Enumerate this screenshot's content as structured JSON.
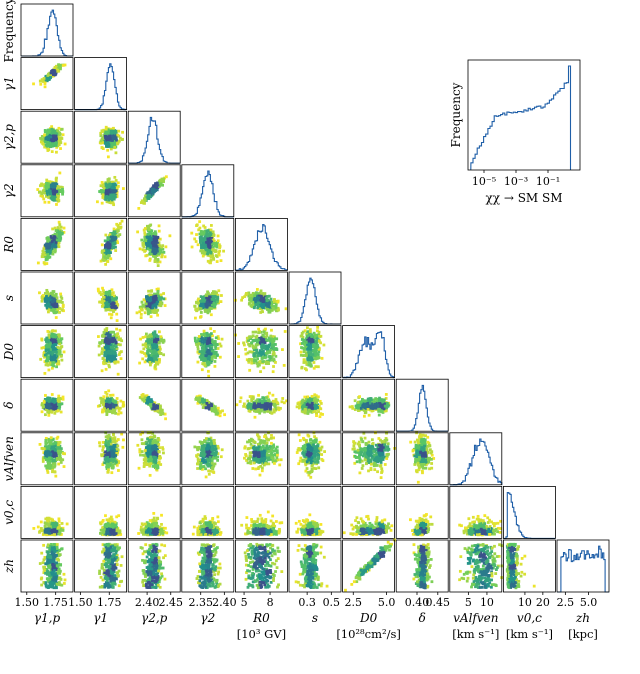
{
  "chart_data": {
    "type": "corner",
    "inset_histogram": {
      "type": "histogram",
      "xlabel": "χχ → SM SM",
      "ylabel": "Frequency",
      "xscale": "log",
      "x_ticks": [
        {
          "value": 1e-05,
          "label": "10⁻⁵"
        },
        {
          "value": 0.001,
          "label": "10⁻³"
        },
        {
          "value": 0.1,
          "label": "10⁻¹"
        }
      ],
      "xlim": [
        1e-06,
        10
      ],
      "color": "#1f5fa8"
    },
    "parameters": [
      {
        "name": "gamma_1p",
        "label": "γ1,p",
        "unit": "",
        "xlim": [
          1.45,
          1.9
        ],
        "ticks": [
          1.5,
          1.75
        ],
        "tick_labels": [
          "1.50",
          "1.75"
        ],
        "mean": 1.72,
        "sd": 0.04
      },
      {
        "name": "gamma_1",
        "label": "γ1",
        "unit": "",
        "xlim": [
          1.45,
          1.9
        ],
        "ticks": [
          1.5,
          1.75
        ],
        "tick_labels": [
          "1.50",
          "1.75"
        ],
        "mean": 1.76,
        "sd": 0.035
      },
      {
        "name": "gamma_2p",
        "label": "γ2,p",
        "unit": "",
        "xlim": [
          2.36,
          2.47
        ],
        "ticks": [
          2.4,
          2.45
        ],
        "tick_labels": [
          "2.40",
          "2.45"
        ],
        "mean": 2.412,
        "sd": 0.01
      },
      {
        "name": "gamma_2",
        "label": "γ2",
        "unit": "",
        "xlim": [
          2.31,
          2.42
        ],
        "ticks": [
          2.35,
          2.4
        ],
        "tick_labels": [
          "2.35",
          "2.40"
        ],
        "mean": 2.365,
        "sd": 0.011
      },
      {
        "name": "R_0",
        "label": "R0",
        "unit": "[10³ GV]",
        "xlim": [
          4,
          10
        ],
        "ticks": [
          5,
          8
        ],
        "tick_labels": [
          "5",
          "8"
        ],
        "mean": 7.1,
        "sd": 0.9
      },
      {
        "name": "s",
        "label": "s",
        "unit": "",
        "xlim": [
          0.15,
          0.58
        ],
        "ticks": [
          0.3,
          0.5
        ],
        "tick_labels": [
          "0.3",
          "0.5"
        ],
        "mean": 0.33,
        "sd": 0.04
      },
      {
        "name": "D_0",
        "label": "D0",
        "unit": "[10²⁸cm²/s]",
        "xlim": [
          1.7,
          5.6
        ],
        "ticks": [
          2.5,
          5.0
        ],
        "tick_labels": [
          "2.5",
          "5.0"
        ],
        "mean": 4.3,
        "sd": 0.55
      },
      {
        "name": "delta",
        "label": "δ",
        "unit": "",
        "xlim": [
          0.35,
          0.475
        ],
        "ticks": [
          0.4,
          0.45
        ],
        "tick_labels": [
          "0.40",
          "0.45"
        ],
        "mean": 0.413,
        "sd": 0.009
      },
      {
        "name": "v_Alfven",
        "label": "vAlfven",
        "unit": "[km s⁻¹]",
        "xlim": [
          0,
          14
        ],
        "ticks": [
          5,
          10
        ],
        "tick_labels": [
          "5",
          "10"
        ],
        "mean": 8.5,
        "sd": 2.1
      },
      {
        "name": "v_0c",
        "label": "v0,c",
        "unit": "[km s⁻¹]",
        "xlim": [
          -2,
          27
        ],
        "ticks": [
          10,
          20
        ],
        "tick_labels": [
          "10",
          "20"
        ],
        "mean": 1.5,
        "sd": 2.5
      },
      {
        "name": "z_h",
        "label": "zh",
        "unit": "[kpc]",
        "xlim": [
          1.6,
          7.2
        ],
        "ticks": [
          2.5,
          5.0
        ],
        "tick_labels": [
          "2.5",
          "5.0"
        ],
        "mean": 4.2,
        "sd": 1.5
      }
    ],
    "correlations": [
      {
        "pair": [
          "gamma_1p",
          "gamma_1"
        ],
        "r": 0.9
      },
      {
        "pair": [
          "gamma_1p",
          "R_0"
        ],
        "r": 0.78
      },
      {
        "pair": [
          "gamma_1p",
          "s"
        ],
        "r": -0.45
      },
      {
        "pair": [
          "gamma_1p",
          "v_0c"
        ],
        "r": -0.4
      },
      {
        "pair": [
          "gamma_1",
          "R_0"
        ],
        "r": 0.72
      },
      {
        "pair": [
          "gamma_1",
          "s"
        ],
        "r": -0.4
      },
      {
        "pair": [
          "gamma_2p",
          "gamma_2"
        ],
        "r": 0.95
      },
      {
        "pair": [
          "gamma_2p",
          "R_0"
        ],
        "r": -0.35
      },
      {
        "pair": [
          "gamma_2p",
          "s"
        ],
        "r": 0.45
      },
      {
        "pair": [
          "gamma_2p",
          "delta"
        ],
        "r": -0.9
      },
      {
        "pair": [
          "gamma_2",
          "R_0"
        ],
        "r": -0.38
      },
      {
        "pair": [
          "gamma_2",
          "s"
        ],
        "r": 0.45
      },
      {
        "pair": [
          "gamma_2",
          "delta"
        ],
        "r": -0.88
      },
      {
        "pair": [
          "R_0",
          "s"
        ],
        "r": -0.55
      },
      {
        "pair": [
          "D_0",
          "v_0c"
        ],
        "r": 0.35
      },
      {
        "pair": [
          "D_0",
          "z_h"
        ],
        "r": 0.95
      },
      {
        "pair": [
          "delta",
          "v_0c"
        ],
        "r": 0.2
      }
    ],
    "scatter_colormap": "viridis",
    "histogram_color": "#1f5fa8"
  }
}
